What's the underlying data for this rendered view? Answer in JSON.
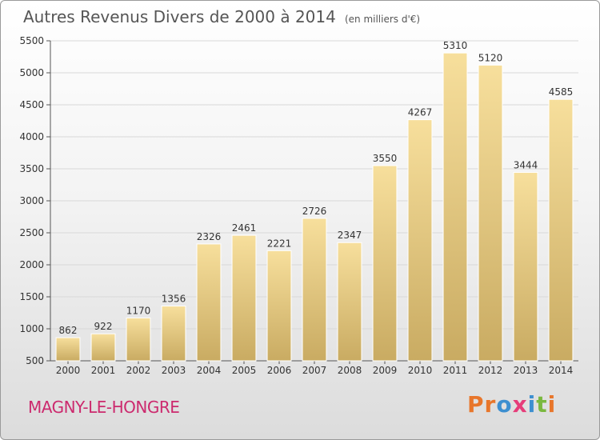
{
  "header": {
    "title": "Autres Revenus Divers de 2000 à 2014",
    "subtitle": "(en milliers d'€)"
  },
  "footer": {
    "city": "MAGNY-LE-HONGRE",
    "logo_text": "Proxiti",
    "logo_letters": [
      "P",
      "r",
      "o",
      "x",
      "i",
      "t",
      "i"
    ],
    "logo_colors": [
      "#e8762b",
      "#e8762b",
      "#3d8fd0",
      "#e63d7a",
      "#3d8fd0",
      "#7ab83f",
      "#e8762b"
    ]
  },
  "colors": {
    "bar_top": "#f7df9c",
    "bar_bottom": "#c9ab62",
    "city": "#cc2a6e"
  },
  "chart_data": {
    "type": "bar",
    "title": "Autres Revenus Divers de 2000 à 2014",
    "subtitle": "(en milliers d'€)",
    "categories": [
      "2000",
      "2001",
      "2002",
      "2003",
      "2004",
      "2005",
      "2006",
      "2007",
      "2008",
      "2009",
      "2010",
      "2011",
      "2012",
      "2013",
      "2014"
    ],
    "values": [
      862,
      922,
      1170,
      1356,
      2326,
      2461,
      2221,
      2726,
      2347,
      3550,
      4267,
      5310,
      5120,
      3444,
      4585
    ],
    "y_ticks": [
      500,
      1000,
      1500,
      2000,
      2500,
      3000,
      3500,
      4000,
      4500,
      5000,
      5500
    ],
    "ylim": [
      500,
      5500
    ],
    "grid": true,
    "legend": "none"
  }
}
